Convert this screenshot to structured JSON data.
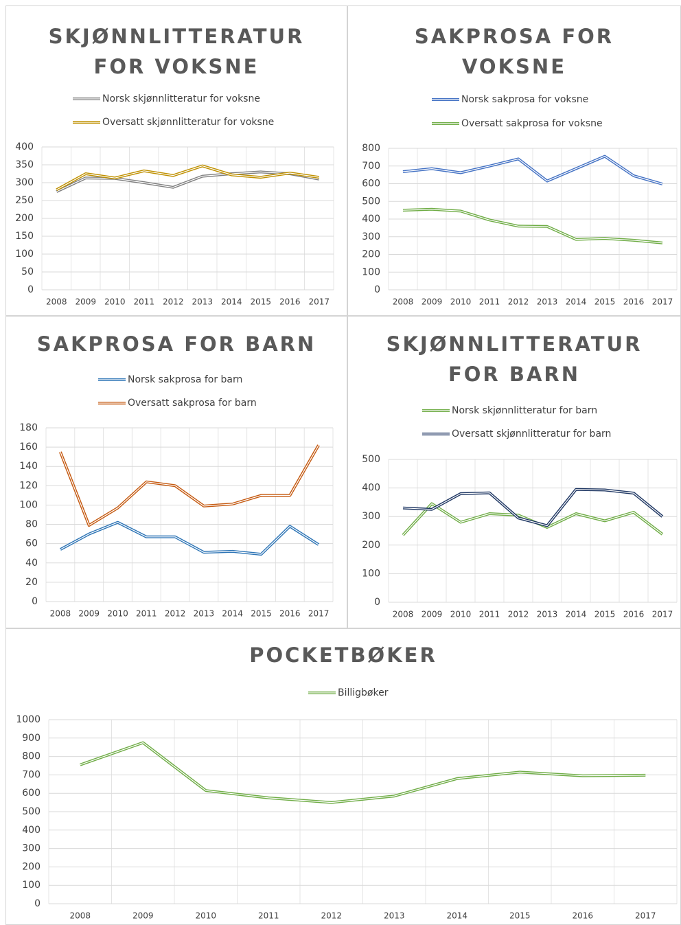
{
  "chart_data": [
    {
      "type": "line",
      "title": "SKJØNNLITTERATUR FOR VOKSNE",
      "categories": [
        "2008",
        "2009",
        "2010",
        "2011",
        "2012",
        "2013",
        "2014",
        "2015",
        "2016",
        "2017"
      ],
      "series": [
        {
          "name": "Norsk skjønnlitteratur for voksne",
          "color": "#808080",
          "values": [
            275,
            313,
            312,
            300,
            287,
            318,
            325,
            330,
            325,
            310
          ]
        },
        {
          "name": "Oversatt skjønnlitteratur for voksne",
          "color": "#bf9000",
          "values": [
            280,
            325,
            313,
            333,
            320,
            347,
            322,
            315,
            327,
            315
          ]
        }
      ],
      "ylim": [
        0,
        400
      ],
      "yticks": [
        0,
        50,
        100,
        150,
        200,
        250,
        300,
        350,
        400
      ],
      "grid": true
    },
    {
      "type": "line",
      "title": "SAKPROSA FOR VOKSNE",
      "categories": [
        "2008",
        "2009",
        "2010",
        "2011",
        "2012",
        "2013",
        "2014",
        "2015",
        "2016",
        "2017"
      ],
      "series": [
        {
          "name": "Norsk sakprosa for voksne",
          "color": "#4472c4",
          "values": [
            668,
            685,
            662,
            700,
            740,
            615,
            685,
            755,
            645,
            598
          ]
        },
        {
          "name": "Oversatt sakprosa for voksne",
          "color": "#70ad47",
          "values": [
            450,
            455,
            445,
            395,
            360,
            358,
            285,
            290,
            280,
            265
          ]
        }
      ],
      "ylim": [
        0,
        800
      ],
      "yticks": [
        0,
        100,
        200,
        300,
        400,
        500,
        600,
        700,
        800
      ],
      "grid": true
    },
    {
      "type": "line",
      "title": "SAKPROSA FOR BARN",
      "categories": [
        "2008",
        "2009",
        "2010",
        "2011",
        "2012",
        "2013",
        "2014",
        "2015",
        "2016",
        "2017"
      ],
      "series": [
        {
          "name": "Norsk sakprosa for barn",
          "color": "#2e75b6",
          "values": [
            54,
            70,
            82,
            67,
            67,
            51,
            52,
            49,
            78,
            59
          ]
        },
        {
          "name": "Oversatt sakprosa for barn",
          "color": "#c55a11",
          "values": [
            155,
            79,
            97,
            124,
            120,
            99,
            101,
            110,
            110,
            162
          ]
        }
      ],
      "ylim": [
        0,
        180
      ],
      "yticks": [
        0,
        20,
        40,
        60,
        80,
        100,
        120,
        140,
        160,
        180
      ],
      "grid": true
    },
    {
      "type": "line",
      "title": "SKJØNNLITTERATUR FOR BARN",
      "categories": [
        "2008",
        "2009",
        "2010",
        "2011",
        "2012",
        "2013",
        "2014",
        "2015",
        "2016",
        "2017"
      ],
      "series": [
        {
          "name": "Norsk skjønnlitteratur for barn",
          "color": "#70ad47",
          "values": [
            235,
            345,
            280,
            310,
            305,
            262,
            310,
            285,
            315,
            238
          ]
        },
        {
          "name": "Oversatt skjønnlitteratur for barn",
          "color": "#203864",
          "values": [
            330,
            325,
            380,
            383,
            295,
            268,
            395,
            393,
            382,
            300
          ]
        }
      ],
      "ylim": [
        0,
        500
      ],
      "yticks": [
        0,
        100,
        200,
        300,
        400,
        500
      ],
      "grid": true
    },
    {
      "type": "line",
      "title": "POCKETBØKER",
      "categories": [
        "2008",
        "2009",
        "2010",
        "2011",
        "2012",
        "2013",
        "2014",
        "2015",
        "2016",
        "2017"
      ],
      "series": [
        {
          "name": "Billigbøker",
          "color": "#70ad47",
          "values": [
            755,
            875,
            615,
            575,
            550,
            585,
            680,
            715,
            695,
            698
          ]
        }
      ],
      "ylim": [
        0,
        1000
      ],
      "yticks": [
        0,
        100,
        200,
        300,
        400,
        500,
        600,
        700,
        800,
        900,
        1000
      ],
      "grid": true
    }
  ]
}
